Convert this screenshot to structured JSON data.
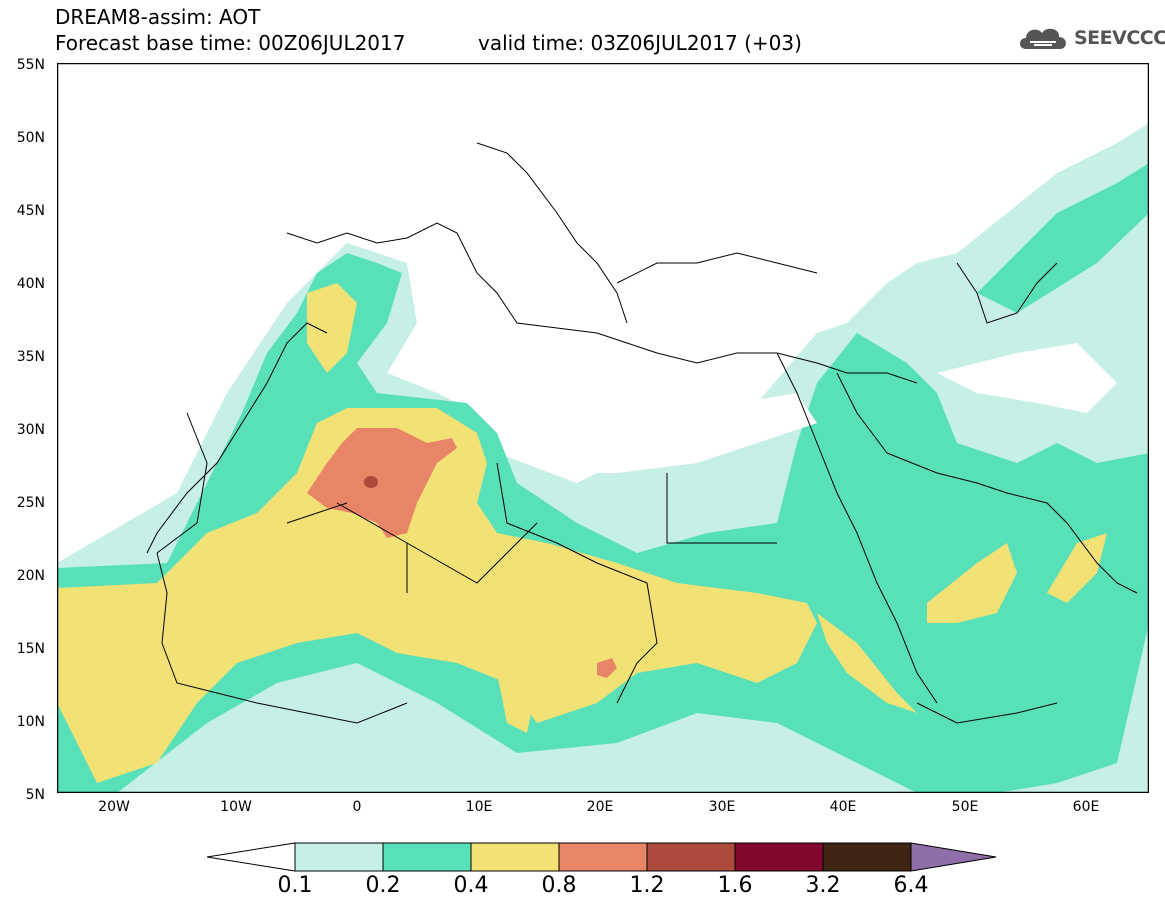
{
  "header": {
    "title": "DREAM8-assim: AOT",
    "base_time": "Forecast base time: 00Z06JUL2017",
    "valid_time": "valid time: 03Z06JUL2017 (+03)"
  },
  "logo": {
    "text": "SEEVCCC",
    "icon": "cloud-icon"
  },
  "map": {
    "y_ticks": [
      "55N",
      "50N",
      "45N",
      "40N",
      "35N",
      "30N",
      "25N",
      "20N",
      "15N",
      "10N",
      "5N"
    ],
    "x_ticks": [
      "20W",
      "10W",
      "0",
      "10E",
      "20E",
      "30E",
      "40E",
      "50E",
      "60E"
    ],
    "lat_range": [
      5,
      55
    ],
    "lon_range": [
      -25,
      65
    ]
  },
  "colorbar": {
    "labels": [
      "0.1",
      "0.2",
      "0.4",
      "0.8",
      "1.2",
      "1.6",
      "3.2",
      "6.4"
    ],
    "colors": [
      "#c6f0e6",
      "#58e0b8",
      "#f2e175",
      "#e88566",
      "#ad4a3c",
      "#82082e",
      "#3f2614",
      "#8e6fa8"
    ]
  },
  "colors": {
    "level1": "#c6f0e6",
    "level2": "#58e0b8",
    "level3": "#f2e175",
    "level4": "#e88566",
    "level5": "#ad4a3c"
  }
}
